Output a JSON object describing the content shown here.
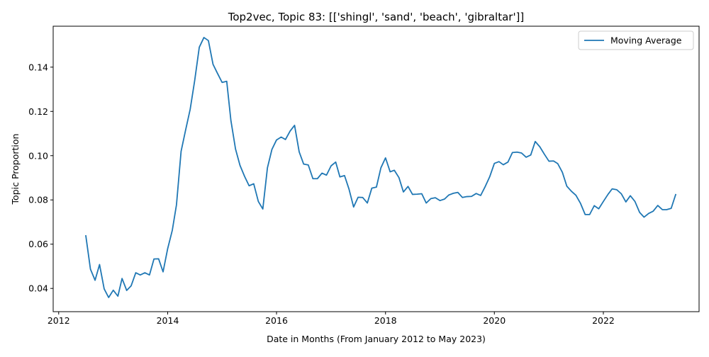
{
  "chart_data": {
    "type": "line",
    "title": "Top2vec, Topic 83: [['shingl', 'sand', 'beach', 'gibraltar']]",
    "xlabel": "Date in Months (From January 2012 to May 2023)",
    "ylabel": "Topic Proportion",
    "xlim": [
      "2011-11-25",
      "2023-10-05"
    ],
    "ylim": [
      0.0295,
      0.1585
    ],
    "x_ticks": [
      "2012",
      "2014",
      "2016",
      "2018",
      "2020",
      "2022"
    ],
    "y_ticks": [
      "0.04",
      "0.06",
      "0.08",
      "0.10",
      "0.12",
      "0.14"
    ],
    "grid": false,
    "legend_position": "upper right",
    "series": [
      {
        "name": "Moving Average",
        "color": "#1f77b4",
        "points": [
          [
            "2012-07",
            0.0638
          ],
          [
            "2012-08",
            0.0487
          ],
          [
            "2012-09",
            0.0437
          ],
          [
            "2012-10",
            0.0508
          ],
          [
            "2012-11",
            0.0398
          ],
          [
            "2012-12",
            0.0359
          ],
          [
            "2013-01",
            0.0392
          ],
          [
            "2013-02",
            0.0365
          ],
          [
            "2013-03",
            0.0445
          ],
          [
            "2013-04",
            0.0391
          ],
          [
            "2013-05",
            0.0412
          ],
          [
            "2013-06",
            0.0471
          ],
          [
            "2013-07",
            0.0461
          ],
          [
            "2013-08",
            0.0471
          ],
          [
            "2013-09",
            0.0461
          ],
          [
            "2013-10",
            0.0533
          ],
          [
            "2013-11",
            0.0534
          ],
          [
            "2013-12",
            0.0475
          ],
          [
            "2014-01",
            0.058
          ],
          [
            "2014-02",
            0.0663
          ],
          [
            "2014-03",
            0.0778
          ],
          [
            "2014-04",
            0.102
          ],
          [
            "2014-05",
            0.1115
          ],
          [
            "2014-06",
            0.121
          ],
          [
            "2014-07",
            0.1339
          ],
          [
            "2014-08",
            0.149
          ],
          [
            "2014-09",
            0.1534
          ],
          [
            "2014-10",
            0.152
          ],
          [
            "2014-11",
            0.1413
          ],
          [
            "2014-12",
            0.1372
          ],
          [
            "2015-01",
            0.1331
          ],
          [
            "2015-02",
            0.1336
          ],
          [
            "2015-03",
            0.1159
          ],
          [
            "2015-04",
            0.103
          ],
          [
            "2015-05",
            0.0956
          ],
          [
            "2015-06",
            0.0906
          ],
          [
            "2015-07",
            0.0864
          ],
          [
            "2015-08",
            0.0873
          ],
          [
            "2015-09",
            0.0793
          ],
          [
            "2015-10",
            0.0759
          ],
          [
            "2015-11",
            0.0945
          ],
          [
            "2015-12",
            0.1028
          ],
          [
            "2016-01",
            0.1071
          ],
          [
            "2016-02",
            0.1084
          ],
          [
            "2016-03",
            0.1073
          ],
          [
            "2016-04",
            0.1111
          ],
          [
            "2016-05",
            0.1137
          ],
          [
            "2016-06",
            0.1017
          ],
          [
            "2016-07",
            0.0962
          ],
          [
            "2016-08",
            0.0958
          ],
          [
            "2016-09",
            0.0896
          ],
          [
            "2016-10",
            0.0896
          ],
          [
            "2016-11",
            0.0921
          ],
          [
            "2016-12",
            0.0912
          ],
          [
            "2017-01",
            0.0954
          ],
          [
            "2017-02",
            0.0971
          ],
          [
            "2017-03",
            0.0904
          ],
          [
            "2017-04",
            0.091
          ],
          [
            "2017-05",
            0.0849
          ],
          [
            "2017-06",
            0.0768
          ],
          [
            "2017-07",
            0.0812
          ],
          [
            "2017-08",
            0.0811
          ],
          [
            "2017-09",
            0.0786
          ],
          [
            "2017-10",
            0.0853
          ],
          [
            "2017-11",
            0.0858
          ],
          [
            "2017-12",
            0.0945
          ],
          [
            "2018-01",
            0.099
          ],
          [
            "2018-02",
            0.0927
          ],
          [
            "2018-03",
            0.0934
          ],
          [
            "2018-04",
            0.0901
          ],
          [
            "2018-05",
            0.0836
          ],
          [
            "2018-06",
            0.0861
          ],
          [
            "2018-07",
            0.0825
          ],
          [
            "2018-08",
            0.0826
          ],
          [
            "2018-09",
            0.0828
          ],
          [
            "2018-10",
            0.0786
          ],
          [
            "2018-11",
            0.0806
          ],
          [
            "2018-12",
            0.081
          ],
          [
            "2019-01",
            0.0797
          ],
          [
            "2019-02",
            0.0804
          ],
          [
            "2019-03",
            0.0822
          ],
          [
            "2019-04",
            0.083
          ],
          [
            "2019-05",
            0.0834
          ],
          [
            "2019-06",
            0.0811
          ],
          [
            "2019-07",
            0.0815
          ],
          [
            "2019-08",
            0.0816
          ],
          [
            "2019-09",
            0.0829
          ],
          [
            "2019-10",
            0.082
          ],
          [
            "2019-11",
            0.0861
          ],
          [
            "2019-12",
            0.0905
          ],
          [
            "2020-01",
            0.0965
          ],
          [
            "2020-02",
            0.0973
          ],
          [
            "2020-03",
            0.0959
          ],
          [
            "2020-04",
            0.0971
          ],
          [
            "2020-05",
            0.1014
          ],
          [
            "2020-06",
            0.1016
          ],
          [
            "2020-07",
            0.1012
          ],
          [
            "2020-08",
            0.0993
          ],
          [
            "2020-09",
            0.1003
          ],
          [
            "2020-10",
            0.1064
          ],
          [
            "2020-11",
            0.104
          ],
          [
            "2020-12",
            0.1007
          ],
          [
            "2021-01",
            0.0975
          ],
          [
            "2021-02",
            0.0976
          ],
          [
            "2021-03",
            0.0964
          ],
          [
            "2021-04",
            0.0925
          ],
          [
            "2021-05",
            0.0862
          ],
          [
            "2021-06",
            0.0839
          ],
          [
            "2021-07",
            0.0821
          ],
          [
            "2021-08",
            0.0784
          ],
          [
            "2021-09",
            0.0734
          ],
          [
            "2021-10",
            0.0734
          ],
          [
            "2021-11",
            0.0774
          ],
          [
            "2021-12",
            0.076
          ],
          [
            "2022-01",
            0.0793
          ],
          [
            "2022-02",
            0.0825
          ],
          [
            "2022-03",
            0.085
          ],
          [
            "2022-04",
            0.0846
          ],
          [
            "2022-05",
            0.0828
          ],
          [
            "2022-06",
            0.0791
          ],
          [
            "2022-07",
            0.0819
          ],
          [
            "2022-08",
            0.0793
          ],
          [
            "2022-09",
            0.0744
          ],
          [
            "2022-10",
            0.0722
          ],
          [
            "2022-11",
            0.0739
          ],
          [
            "2022-12",
            0.0749
          ],
          [
            "2023-01",
            0.0775
          ],
          [
            "2023-02",
            0.0756
          ],
          [
            "2023-03",
            0.0756
          ],
          [
            "2023-04",
            0.0762
          ],
          [
            "2023-05",
            0.0824
          ]
        ]
      }
    ]
  }
}
